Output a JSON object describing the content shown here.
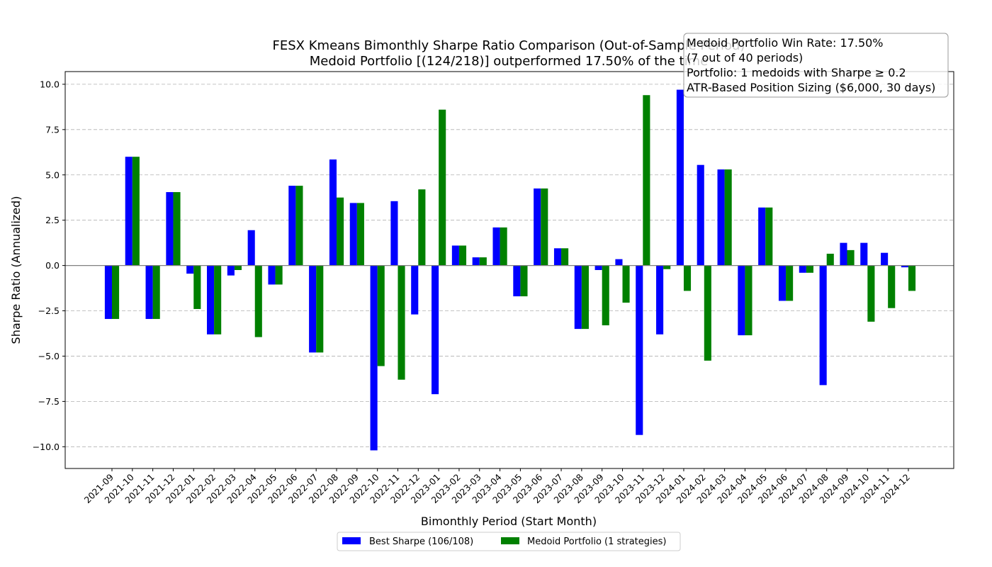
{
  "chart_data": {
    "type": "bar",
    "title": "FESX Kmeans Bimonthly Sharpe Ratio Comparison (Out-of-Sample Period)",
    "subtitle": "Medoid Portfolio [(124/218)] outperformed 17.50% of the time",
    "xlabel": "Bimonthly Period (Start Month)",
    "ylabel": "Sharpe Ratio (Annualized)",
    "ylim": [
      -11.2,
      10.7
    ],
    "yticks": [
      -10.0,
      -7.5,
      -5.0,
      -2.5,
      0.0,
      2.5,
      5.0,
      7.5,
      10.0
    ],
    "ytick_labels": [
      "−10.0",
      "−7.5",
      "−5.0",
      "−2.5",
      "0.0",
      "2.5",
      "5.0",
      "7.5",
      "10.0"
    ],
    "grid": "horizontal dashed",
    "legend_placement": "bottom-center",
    "categories": [
      "2021-09",
      "2021-10",
      "2021-11",
      "2021-12",
      "2022-01",
      "2022-02",
      "2022-03",
      "2022-04",
      "2022-05",
      "2022-06",
      "2022-07",
      "2022-08",
      "2022-09",
      "2022-10",
      "2022-11",
      "2022-12",
      "2023-01",
      "2023-02",
      "2023-03",
      "2023-04",
      "2023-05",
      "2023-06",
      "2023-07",
      "2023-08",
      "2023-09",
      "2023-10",
      "2023-11",
      "2023-12",
      "2024-01",
      "2024-02",
      "2024-03",
      "2024-04",
      "2024-05",
      "2024-06",
      "2024-07",
      "2024-08",
      "2024-09",
      "2024-10",
      "2024-11",
      "2024-12"
    ],
    "series": [
      {
        "name": "Best Sharpe (106/108)",
        "color": "#0000ff",
        "values": [
          -2.95,
          6.0,
          -2.95,
          4.05,
          -0.45,
          -3.8,
          -0.55,
          1.95,
          -1.05,
          4.4,
          -4.8,
          5.85,
          3.45,
          -10.2,
          3.55,
          -2.7,
          -7.1,
          1.1,
          0.45,
          2.1,
          -1.7,
          4.25,
          0.95,
          -3.5,
          -0.25,
          0.35,
          -9.35,
          -3.8,
          9.7,
          5.55,
          5.3,
          -3.85,
          3.2,
          -1.95,
          -0.4,
          -6.6,
          1.25,
          1.25,
          0.7,
          -0.1
        ]
      },
      {
        "name": "Medoid Portfolio (1 strategies)",
        "color": "#008000",
        "values": [
          -2.95,
          6.0,
          -2.95,
          4.05,
          -2.4,
          -3.8,
          -0.25,
          -3.95,
          -1.05,
          4.4,
          -4.8,
          3.75,
          3.45,
          -5.55,
          -6.3,
          4.2,
          8.6,
          1.1,
          0.45,
          2.1,
          -1.7,
          4.25,
          0.95,
          -3.5,
          -3.3,
          -2.05,
          9.4,
          -0.2,
          -1.4,
          -5.25,
          5.3,
          -3.85,
          3.2,
          -1.95,
          -0.4,
          0.65,
          0.85,
          -3.1,
          -2.35,
          -1.4
        ]
      }
    ],
    "annotation_lines": [
      "Medoid Portfolio Win Rate: 17.50%",
      "(7 out of 40 periods)",
      "Portfolio: 1 medoids with Sharpe ≥ 0.2",
      "ATR-Based Position Sizing ($6,000, 30 days)"
    ]
  }
}
